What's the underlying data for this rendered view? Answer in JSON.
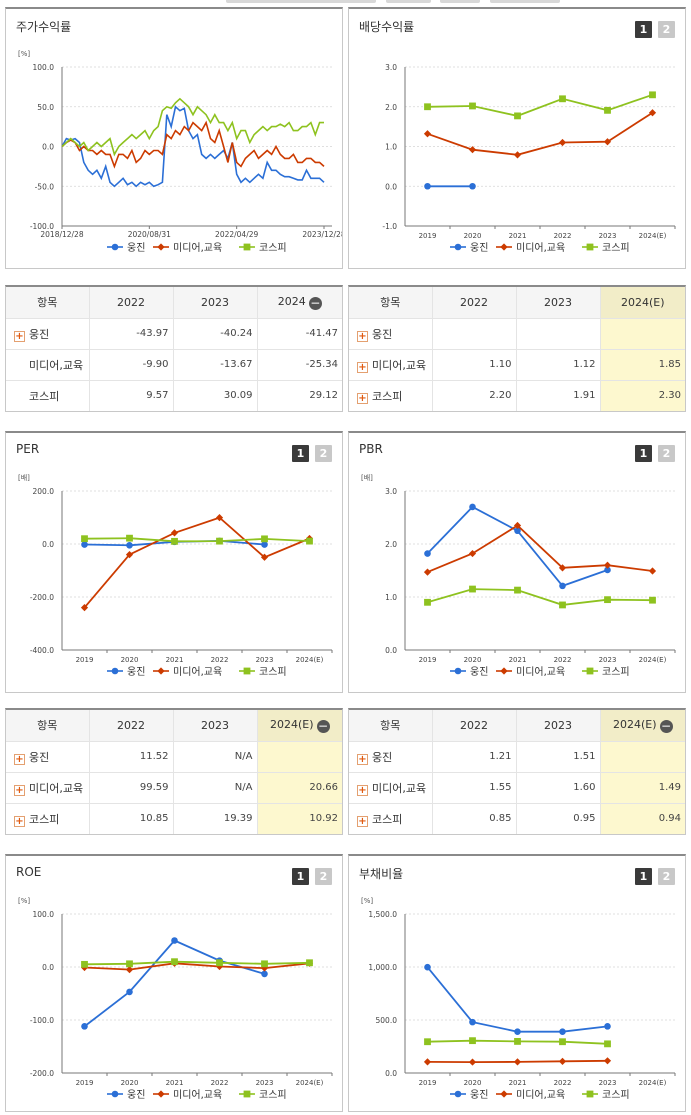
{
  "ui": {
    "btn1": "1",
    "btn2": "2",
    "minus": "−",
    "plus": "+"
  },
  "panels": [
    {
      "id": "stock-return",
      "title": "주가수익률",
      "buttons": false,
      "chart_data": {
        "type": "line",
        "unit": "[%]",
        "yticks": [
          "100.0",
          "50.0",
          "0.0",
          "-50.0",
          "-100.0"
        ],
        "ylim": [
          -100,
          100
        ],
        "xticks": [
          "2018/12/28",
          "2020/08/31",
          "2022/04/29",
          "2023/12/28"
        ],
        "xlim": [
          0,
          60
        ],
        "xtick_pos": [
          0,
          20,
          40,
          60
        ],
        "series": [
          {
            "name": "웅진",
            "color": "#2b6fd6",
            "marker": "circle",
            "values": [
              0,
              10,
              8,
              10,
              5,
              -20,
              -30,
              -35,
              -30,
              -40,
              -25,
              -45,
              -50,
              -45,
              -40,
              -48,
              -45,
              -50,
              -45,
              -48,
              -45,
              -50,
              -48,
              -45,
              40,
              25,
              50,
              45,
              48,
              20,
              10,
              15,
              -10,
              -15,
              -10,
              -15,
              -10,
              -5,
              -15,
              5,
              -35,
              -45,
              -40,
              -45,
              -40,
              -35,
              -40,
              -20,
              -30,
              -30,
              -35,
              -38,
              -38,
              -40,
              -42,
              -42,
              -30,
              -40,
              -40,
              -40,
              -45
            ]
          },
          {
            "name": "미디어,교육",
            "color": "#cc3b00",
            "marker": "diamond",
            "values": [
              0,
              5,
              8,
              5,
              -5,
              0,
              -5,
              -5,
              -10,
              -5,
              -10,
              -10,
              -25,
              -10,
              -10,
              -15,
              -5,
              -20,
              -15,
              -5,
              -10,
              -5,
              -5,
              -10,
              15,
              10,
              20,
              15,
              25,
              20,
              30,
              25,
              20,
              30,
              10,
              5,
              20,
              0,
              -20,
              5,
              -20,
              -25,
              -15,
              -10,
              -5,
              -15,
              -10,
              -5,
              -10,
              0,
              -10,
              -15,
              -15,
              -10,
              -20,
              -20,
              -15,
              -15,
              -20,
              -20,
              -25
            ]
          },
          {
            "name": "코스피",
            "color": "#8ec21f",
            "marker": "square",
            "values": [
              0,
              5,
              10,
              5,
              0,
              5,
              -5,
              0,
              5,
              0,
              5,
              10,
              -10,
              0,
              5,
              10,
              15,
              10,
              15,
              20,
              10,
              20,
              25,
              45,
              50,
              48,
              55,
              60,
              55,
              50,
              40,
              50,
              45,
              40,
              30,
              40,
              30,
              30,
              20,
              30,
              10,
              20,
              20,
              5,
              15,
              20,
              25,
              20,
              25,
              25,
              28,
              25,
              30,
              20,
              20,
              25,
              25,
              30,
              15,
              30,
              30
            ]
          }
        ]
      }
    },
    {
      "id": "dividend-yield",
      "title": "배당수익률",
      "buttons": true,
      "chart_data": {
        "type": "line",
        "unit": "",
        "yticks": [
          "3.0",
          "2.0",
          "1.0",
          "0.0",
          "-1.0"
        ],
        "ylim": [
          -1,
          3
        ],
        "xticks": [
          "2019",
          "2020",
          "2021",
          "2022",
          "2023",
          "2024(E)"
        ],
        "series": [
          {
            "name": "웅진",
            "color": "#2b6fd6",
            "marker": "circle",
            "values": [
              0,
              0,
              null,
              null,
              null,
              null
            ]
          },
          {
            "name": "미디어,교육",
            "color": "#cc3b00",
            "marker": "diamond",
            "values": [
              1.32,
              0.92,
              0.79,
              1.1,
              1.12,
              1.85
            ]
          },
          {
            "name": "코스피",
            "color": "#8ec21f",
            "marker": "square",
            "values": [
              2.0,
              2.02,
              1.77,
              2.2,
              1.91,
              2.3
            ]
          }
        ]
      }
    },
    {
      "id": "per",
      "title": "PER",
      "buttons": true,
      "chart_data": {
        "type": "line",
        "unit": "[배]",
        "yticks": [
          "200.0",
          "0.0",
          "-200.0",
          "-400.0"
        ],
        "ylim": [
          -400,
          200
        ],
        "xticks": [
          "2019",
          "2020",
          "2021",
          "2022",
          "2023",
          "2024(E)"
        ],
        "series": [
          {
            "name": "웅진",
            "color": "#2b6fd6",
            "marker": "circle",
            "values": [
              -2,
              -5,
              8,
              11.52,
              -2,
              null
            ]
          },
          {
            "name": "미디어,교육",
            "color": "#cc3b00",
            "marker": "diamond",
            "values": [
              -240,
              -40,
              42,
              99.59,
              -50,
              20.66
            ]
          },
          {
            "name": "코스피",
            "color": "#8ec21f",
            "marker": "square",
            "values": [
              20,
              22,
              10,
              10.85,
              19.39,
              10.92
            ]
          }
        ]
      }
    },
    {
      "id": "pbr",
      "title": "PBR",
      "buttons": true,
      "chart_data": {
        "type": "line",
        "unit": "[배]",
        "yticks": [
          "3.0",
          "2.0",
          "1.0",
          "0.0"
        ],
        "ylim": [
          0,
          3
        ],
        "xticks": [
          "2019",
          "2020",
          "2021",
          "2022",
          "2023",
          "2024(E)"
        ],
        "series": [
          {
            "name": "웅진",
            "color": "#2b6fd6",
            "marker": "circle",
            "values": [
              1.82,
              2.7,
              2.25,
              1.21,
              1.51,
              null
            ]
          },
          {
            "name": "미디어,교육",
            "color": "#cc3b00",
            "marker": "diamond",
            "values": [
              1.47,
              1.82,
              2.35,
              1.55,
              1.6,
              1.49
            ]
          },
          {
            "name": "코스피",
            "color": "#8ec21f",
            "marker": "square",
            "values": [
              0.9,
              1.15,
              1.13,
              0.85,
              0.95,
              0.94
            ]
          }
        ]
      }
    },
    {
      "id": "roe",
      "title": "ROE",
      "buttons": true,
      "chart_data": {
        "type": "line",
        "unit": "[%]",
        "yticks": [
          "100.0",
          "0.0",
          "-100.0",
          "-200.0"
        ],
        "ylim": [
          -200,
          100
        ],
        "xticks": [
          "2019",
          "2020",
          "2021",
          "2022",
          "2023",
          "2024(E)"
        ],
        "series": [
          {
            "name": "웅진",
            "color": "#2b6fd6",
            "marker": "circle",
            "values": [
              -112,
              -47,
              50,
              12,
              -13,
              null
            ]
          },
          {
            "name": "미디어,교육",
            "color": "#cc3b00",
            "marker": "diamond",
            "values": [
              -1,
              -5,
              7,
              1,
              -2,
              7
            ]
          },
          {
            "name": "코스피",
            "color": "#8ec21f",
            "marker": "square",
            "values": [
              5,
              6,
              10,
              8,
              6,
              8
            ]
          }
        ]
      }
    },
    {
      "id": "debt-ratio",
      "title": "부채비율",
      "buttons": true,
      "chart_data": {
        "type": "line",
        "unit": "[%]",
        "yticks": [
          "1,500.0",
          "1,000.0",
          "500.0",
          "0.0"
        ],
        "ylim": [
          0,
          1500
        ],
        "xticks": [
          "2019",
          "2020",
          "2021",
          "2022",
          "2023",
          "2024(E)"
        ],
        "series": [
          {
            "name": "웅진",
            "color": "#2b6fd6",
            "marker": "circle",
            "values": [
              998,
              480,
              390,
              390,
              440,
              null
            ]
          },
          {
            "name": "미디어,교육",
            "color": "#cc3b00",
            "marker": "diamond",
            "values": [
              105,
              103,
              105,
              110,
              115,
              null
            ]
          },
          {
            "name": "코스피",
            "color": "#8ec21f",
            "marker": "square",
            "values": [
              295,
              305,
              298,
              295,
              275,
              null
            ]
          }
        ]
      }
    }
  ],
  "tables": [
    {
      "id": "stock-return-table",
      "header": [
        "항목",
        "2022",
        "2023",
        "2024"
      ],
      "minus_col": true,
      "hl_col": false,
      "rows": [
        {
          "name": "웅진",
          "plus": true,
          "vals": [
            "-43.97",
            "-40.24",
            "-41.47"
          ]
        },
        {
          "name": "미디어,교육",
          "plus": false,
          "vals": [
            "-9.90",
            "-13.67",
            "-25.34"
          ]
        },
        {
          "name": "코스피",
          "plus": false,
          "vals": [
            "9.57",
            "30.09",
            "29.12"
          ]
        }
      ]
    },
    {
      "id": "dividend-yield-table",
      "header": [
        "항목",
        "2022",
        "2023",
        "2024(E)"
      ],
      "minus_col": false,
      "hl_col": true,
      "rows": [
        {
          "name": "웅진",
          "plus": true,
          "vals": [
            "",
            "",
            ""
          ]
        },
        {
          "name": "미디어,교육",
          "plus": true,
          "vals": [
            "1.10",
            "1.12",
            "1.85"
          ]
        },
        {
          "name": "코스피",
          "plus": true,
          "vals": [
            "2.20",
            "1.91",
            "2.30"
          ]
        }
      ]
    },
    {
      "id": "per-table",
      "header": [
        "항목",
        "2022",
        "2023",
        "2024(E)"
      ],
      "minus_col": true,
      "hl_col": true,
      "rows": [
        {
          "name": "웅진",
          "plus": true,
          "vals": [
            "11.52",
            "N/A",
            ""
          ]
        },
        {
          "name": "미디어,교육",
          "plus": true,
          "vals": [
            "99.59",
            "N/A",
            "20.66"
          ]
        },
        {
          "name": "코스피",
          "plus": true,
          "vals": [
            "10.85",
            "19.39",
            "10.92"
          ]
        }
      ]
    },
    {
      "id": "pbr-table",
      "header": [
        "항목",
        "2022",
        "2023",
        "2024(E)"
      ],
      "minus_col": true,
      "hl_col": true,
      "rows": [
        {
          "name": "웅진",
          "plus": true,
          "vals": [
            "1.21",
            "1.51",
            ""
          ]
        },
        {
          "name": "미디어,교육",
          "plus": true,
          "vals": [
            "1.55",
            "1.60",
            "1.49"
          ]
        },
        {
          "name": "코스피",
          "plus": true,
          "vals": [
            "0.85",
            "0.95",
            "0.94"
          ]
        }
      ]
    }
  ]
}
